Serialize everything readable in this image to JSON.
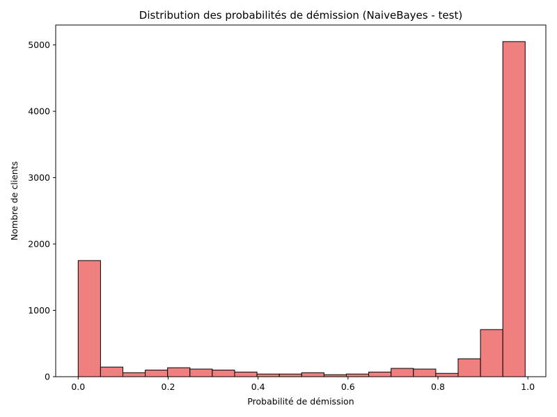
{
  "chart_data": {
    "type": "bar",
    "title": "Distribution des probabilités de démission (NaiveBayes - test)",
    "xlabel": "Probabilité de démission",
    "ylabel": "Nombre de clients",
    "xlim": [
      -0.05,
      1.04
    ],
    "ylim": [
      0,
      5300
    ],
    "x_ticks": [
      0.0,
      0.2,
      0.4,
      0.6,
      0.8,
      1.0
    ],
    "x_tick_labels": [
      "0.0",
      "0.2",
      "0.4",
      "0.6",
      "0.8",
      "1.0"
    ],
    "y_ticks": [
      0,
      1000,
      2000,
      3000,
      4000,
      5000
    ],
    "y_tick_labels": [
      "0",
      "1000",
      "2000",
      "3000",
      "4000",
      "5000"
    ],
    "bin_edges": [
      0.0,
      0.0497,
      0.0994,
      0.1491,
      0.1988,
      0.2485,
      0.2982,
      0.3479,
      0.3976,
      0.4473,
      0.497,
      0.5467,
      0.5964,
      0.6461,
      0.6958,
      0.7455,
      0.7952,
      0.8449,
      0.8946,
      0.9443,
      0.994
    ],
    "values": [
      1750,
      145,
      60,
      100,
      135,
      115,
      100,
      70,
      40,
      40,
      60,
      30,
      40,
      70,
      125,
      115,
      50,
      270,
      710,
      5050
    ],
    "bar_color": "#f08080",
    "edge_color": "#000000",
    "grid": false
  }
}
